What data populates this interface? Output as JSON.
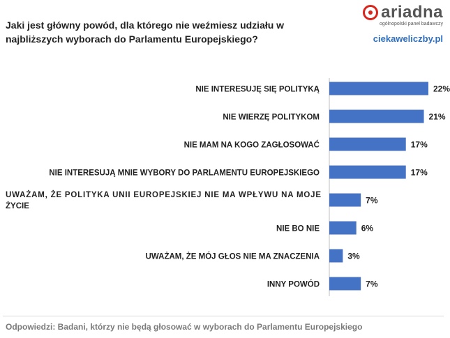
{
  "title": "Jaki jest główny powód, dla którego nie weźmiesz udziału w najbliższych wyborach do Parlamentu Europejskiego?",
  "brand": {
    "name": "ariadna",
    "tagline": "ogólnopolski panel badawczy",
    "site": "ciekaweliczby.pl",
    "color": "#d9261c"
  },
  "footnote": "Odpowiedzi: Badani, którzy nie będą głosować w wyborach do Parlamentu  Europejskiego",
  "chart_data": {
    "type": "bar",
    "orientation": "horizontal",
    "title": "Jaki jest główny powód, dla którego nie weźmiesz udziału w najbliższych wyborach do Parlamentu Europejskiego?",
    "xlabel": "",
    "ylabel": "",
    "xlim": [
      0,
      22
    ],
    "unit": "%",
    "bar_color": "#4472c4",
    "categories": [
      [
        "NIE INTERESUJĘ SIĘ POLITYKĄ"
      ],
      [
        "NIE WIERZĘ POLITYKOM"
      ],
      [
        "NIE MAM NA KOGO ZAGŁOSOWAĆ"
      ],
      [
        "NIE INTERESUJĄ MNIE WYBORY DO PARLAMENTU  EUROPEJSKIEGO"
      ],
      [
        "UWAŻAM, ŻE POLITYKA UNII EUROPEJSKIEJ NIE MA WPŁYWU NA MOJE",
        "ŻYCIE"
      ],
      [
        "NIE BO NIE"
      ],
      [
        "UWAŻAM, ŻE MÓJ GŁOS NIE MA ZNACZENIA"
      ],
      [
        "INNY POWÓD"
      ]
    ],
    "values": [
      22,
      21,
      17,
      17,
      7,
      6,
      3,
      7
    ],
    "value_labels": [
      "22%",
      "21%",
      "17%",
      "17%",
      "7%",
      "6%",
      "3%",
      "7%"
    ]
  }
}
